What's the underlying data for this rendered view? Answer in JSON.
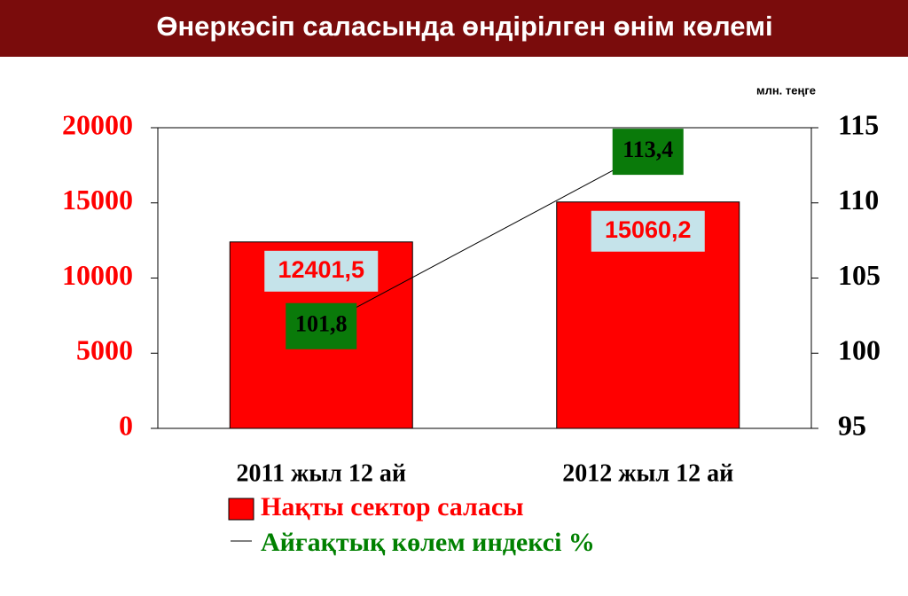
{
  "chart_data": {
    "type": "bar",
    "title": "Өнеркәсіп саласында өндірілген өнім көлемі",
    "unit_label": "млн. теңге",
    "categories": [
      "2011 жыл 12 ай",
      "2012 жыл 12 ай"
    ],
    "series": [
      {
        "name": "Нақты сектор саласы",
        "type": "bar",
        "color": "#ff0000",
        "values": [
          12401.5,
          15060.2
        ],
        "value_labels": [
          "12401,5",
          "15060,2"
        ]
      },
      {
        "name": "Айғақтық көлем индексі %",
        "type": "line",
        "axis": "y2",
        "color": "#000000",
        "values": [
          101.8,
          113.4
        ],
        "value_labels": [
          "101,8",
          "113,4"
        ]
      }
    ],
    "ylim": [
      0,
      20000
    ],
    "yticks": [
      0,
      5000,
      10000,
      15000,
      20000
    ],
    "y2lim": [
      95,
      115
    ],
    "y2ticks": [
      95,
      100,
      105,
      110,
      115
    ]
  }
}
